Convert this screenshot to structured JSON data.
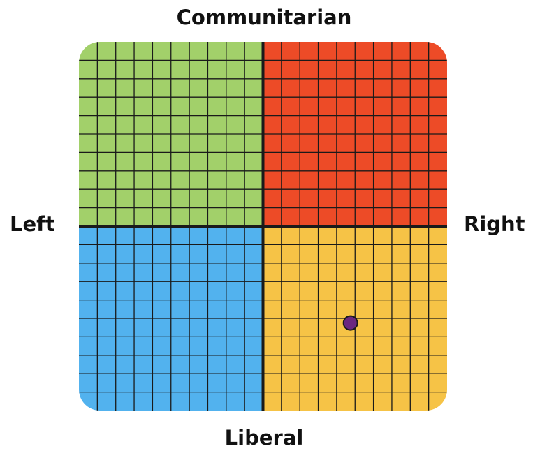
{
  "labels": {
    "top": "Communitarian",
    "bottom": "Liberal",
    "left": "Left",
    "right": "Right"
  },
  "colors": {
    "top_left": "#a2d06a",
    "top_right": "#ed4b27",
    "bottom_left": "#52b2ee",
    "bottom_right": "#f6c346",
    "grid_line": "#1a1a1a",
    "axis_line": "#1a1a1a",
    "marker_fill": "#6a2680",
    "marker_stroke": "#1a1a1a"
  },
  "grid": {
    "cells_per_side": 20
  },
  "marker": {
    "economic": 4.75,
    "social": -5.25
  },
  "axis_range": [
    -10,
    10
  ]
}
